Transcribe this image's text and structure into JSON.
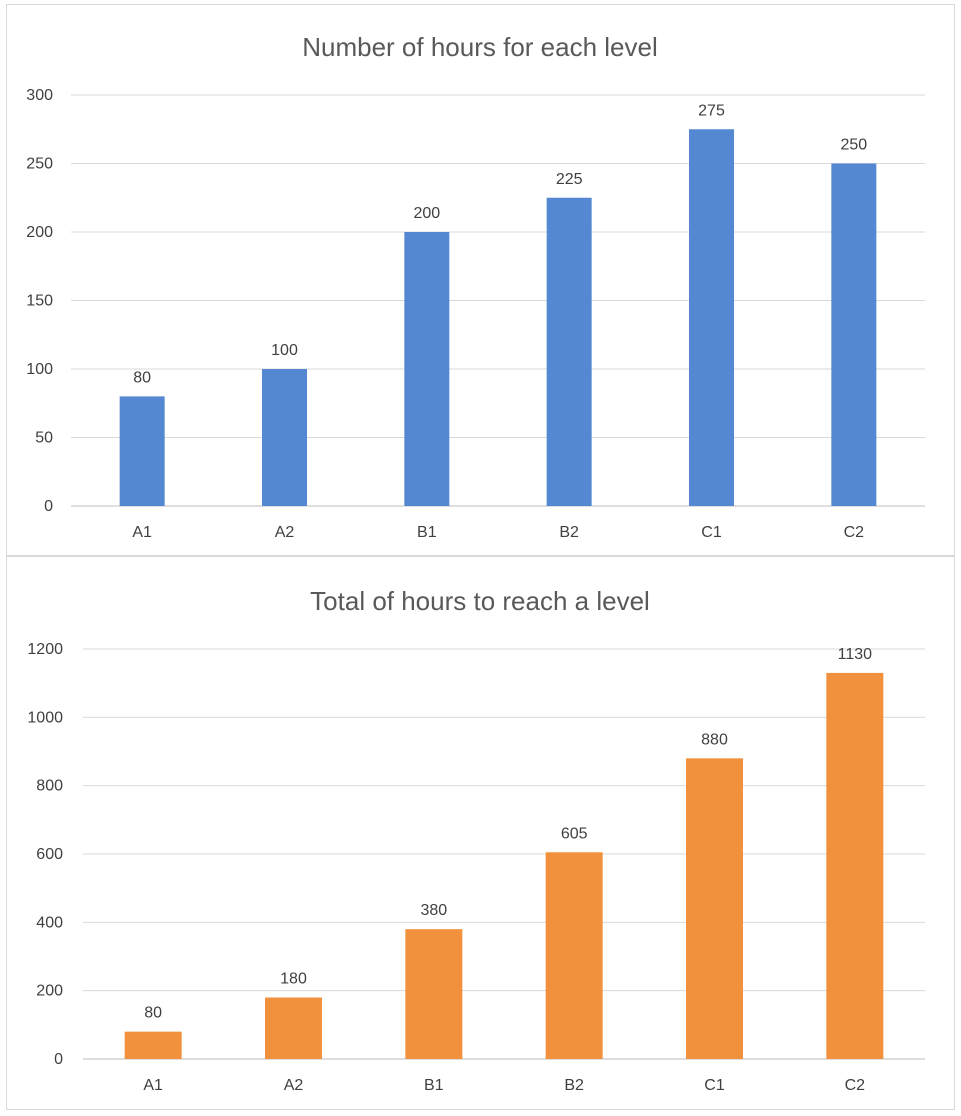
{
  "chart_data": [
    {
      "type": "bar",
      "title": "Number of hours for each level",
      "categories": [
        "A1",
        "A2",
        "B1",
        "B2",
        "C1",
        "C2"
      ],
      "values": [
        80,
        100,
        200,
        225,
        275,
        250
      ],
      "ylim": [
        0,
        300
      ],
      "yticks": [
        0,
        50,
        100,
        150,
        200,
        250,
        300
      ],
      "color": "#5588D2",
      "grid": true,
      "legend": "none",
      "data_labels": true
    },
    {
      "type": "bar",
      "title": "Total of hours to reach a level",
      "categories": [
        "A1",
        "A2",
        "B1",
        "B2",
        "C1",
        "C2"
      ],
      "values": [
        80,
        180,
        380,
        605,
        880,
        1130
      ],
      "ylim": [
        0,
        1200
      ],
      "yticks": [
        0,
        200,
        400,
        600,
        800,
        1000,
        1200
      ],
      "color": "#F2913D",
      "grid": true,
      "legend": "none",
      "data_labels": true
    }
  ]
}
